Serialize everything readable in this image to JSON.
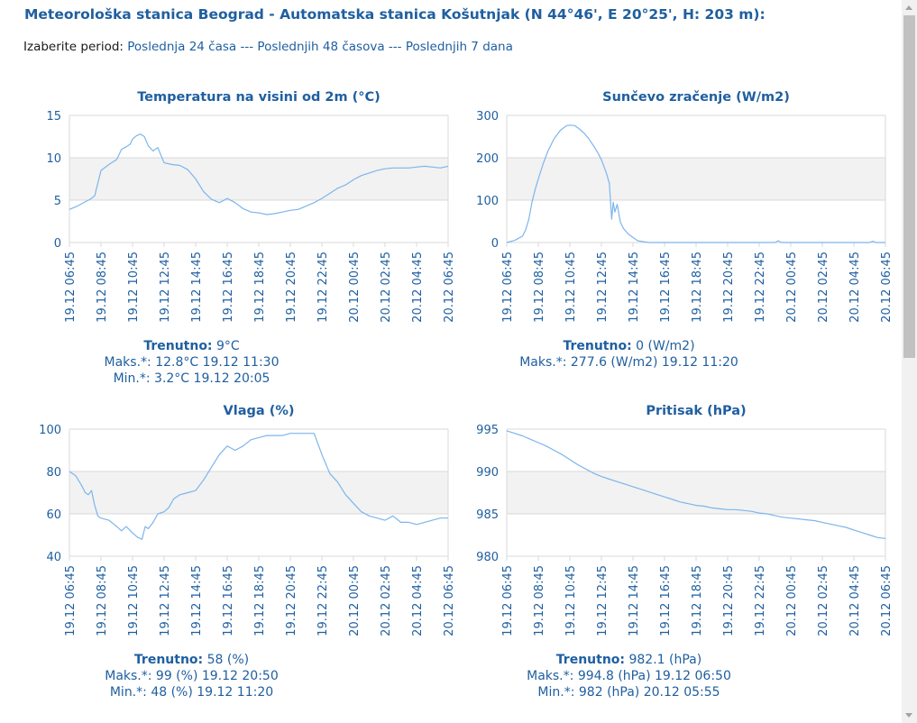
{
  "header": {
    "title": "Meteorološka stanica Beograd - Automatska stanica Košutnjak (N 44°46', E 20°25', H: 203 m):"
  },
  "period": {
    "label": "Izaberite period:",
    "options": [
      "Poslednja 24 časa",
      "Poslednjih 48 časova",
      "Poslednjih 7 dana"
    ],
    "separator": "---"
  },
  "colors": {
    "accent": "#1f5fa0",
    "line": "#7cb5ec",
    "band": "#f2f2f2",
    "grid": "#d8d8d8"
  },
  "chart_data": [
    {
      "type": "line",
      "title": "Temperatura na visini od 2m (°C)",
      "ylim": [
        0,
        15
      ],
      "yticks": [
        0,
        5,
        10,
        15
      ],
      "band": [
        5,
        10
      ],
      "x_labels": [
        "19.12 06:45",
        "19.12 08:45",
        "19.12 10:45",
        "19.12 12:45",
        "19.12 14:45",
        "19.12 16:45",
        "19.12 18:45",
        "19.12 20:45",
        "19.12 22:45",
        "20.12 00:45",
        "20.12 02:45",
        "20.12 04:45",
        "20.12 06:45"
      ],
      "x": [
        0,
        0.5,
        1,
        1.3,
        1.6,
        2,
        2.5,
        3,
        3.3,
        3.6,
        3.85,
        4,
        4.25,
        4.5,
        4.75,
        5,
        5.3,
        5.6,
        6,
        6.5,
        7,
        7.5,
        8,
        8.5,
        9,
        9.5,
        10,
        10.5,
        11,
        11.5,
        12,
        12.5,
        13,
        13.5,
        14,
        14.5,
        15,
        15.5,
        16,
        16.5,
        17,
        17.5,
        18,
        18.5,
        19,
        19.5,
        20,
        20.5,
        21,
        21.5,
        22,
        22.5,
        23,
        23.5,
        24
      ],
      "y": [
        3.9,
        4.3,
        4.8,
        5.1,
        5.5,
        8.5,
        9.2,
        9.8,
        11.0,
        11.3,
        11.6,
        12.2,
        12.6,
        12.8,
        12.5,
        11.4,
        10.8,
        11.2,
        9.4,
        9.2,
        9.1,
        8.6,
        7.5,
        6.0,
        5.1,
        4.7,
        5.2,
        4.7,
        4.0,
        3.6,
        3.5,
        3.3,
        3.4,
        3.6,
        3.8,
        3.9,
        4.3,
        4.7,
        5.2,
        5.8,
        6.4,
        6.8,
        7.4,
        7.9,
        8.2,
        8.5,
        8.7,
        8.8,
        8.8,
        8.8,
        8.9,
        9.0,
        8.9,
        8.8,
        9.0
      ],
      "stats": {
        "current_label": "Trenutno:",
        "current_value": "9°C",
        "max_label": "Maks.*:",
        "max_value": "12.8°C 19.12 11:30",
        "min_label": "Min.*:",
        "min_value": "3.2°C 19.12 20:05"
      }
    },
    {
      "type": "line",
      "title": "Sunčevo zračenje (W/m2)",
      "ylim": [
        0,
        300
      ],
      "yticks": [
        0,
        100,
        200,
        300
      ],
      "band": [
        100,
        200
      ],
      "x_labels": [
        "19.12 06:45",
        "19.12 08:45",
        "19.12 10:45",
        "19.12 12:45",
        "19.12 14:45",
        "19.12 16:45",
        "19.12 18:45",
        "19.12 20:45",
        "19.12 22:45",
        "20.12 00:45",
        "20.12 02:45",
        "20.12 04:45",
        "20.12 06:45"
      ],
      "x": [
        0,
        0.5,
        1,
        1.2,
        1.4,
        1.6,
        1.8,
        2,
        2.3,
        2.6,
        3,
        3.4,
        3.8,
        4,
        4.3,
        4.6,
        4.9,
        5.2,
        5.5,
        5.8,
        6,
        6.3,
        6.5,
        6.65,
        6.75,
        6.85,
        7,
        7.2,
        7.4,
        7.7,
        8,
        8.3,
        9,
        10,
        15,
        17,
        17.2,
        17.4,
        18,
        23,
        23.2,
        23.4,
        24
      ],
      "y": [
        0,
        5,
        15,
        30,
        55,
        95,
        125,
        150,
        185,
        215,
        245,
        265,
        276,
        277,
        276,
        268,
        258,
        245,
        228,
        210,
        195,
        165,
        140,
        55,
        95,
        72,
        90,
        48,
        33,
        20,
        12,
        4,
        0,
        0,
        0,
        0,
        4,
        0,
        0,
        0,
        3,
        0,
        0
      ],
      "stats": {
        "current_label": "Trenutno:",
        "current_value": "0 (W/m2)",
        "max_label": "Maks.*:",
        "max_value": "277.6 (W/m2) 19.12 11:20"
      }
    },
    {
      "type": "line",
      "title": "Vlaga (%)",
      "ylim": [
        40,
        100
      ],
      "yticks": [
        40,
        60,
        80,
        100
      ],
      "band": [
        60,
        80
      ],
      "x_labels": [
        "19.12 06:45",
        "19.12 08:45",
        "19.12 10:45",
        "19.12 12:45",
        "19.12 14:45",
        "19.12 16:45",
        "19.12 18:45",
        "19.12 20:45",
        "19.12 22:45",
        "20.12 00:45",
        "20.12 02:45",
        "20.12 04:45",
        "20.12 06:45"
      ],
      "x": [
        0,
        0.4,
        0.8,
        1,
        1.2,
        1.4,
        1.6,
        1.8,
        2,
        2.5,
        3,
        3.3,
        3.6,
        4,
        4.3,
        4.6,
        4.8,
        5,
        5.3,
        5.6,
        6,
        6.3,
        6.6,
        7,
        7.5,
        8,
        8.5,
        9,
        9.5,
        10,
        10.5,
        11,
        11.5,
        12,
        12.5,
        13,
        13.5,
        14,
        14.5,
        15,
        15.5,
        16,
        16.5,
        17,
        17.5,
        18,
        18.5,
        19,
        19.5,
        20,
        20.5,
        21,
        21.5,
        22,
        22.5,
        23,
        23.5,
        24
      ],
      "y": [
        80,
        78,
        73,
        70,
        69,
        71,
        64,
        59,
        58,
        57,
        54,
        52,
        54,
        51,
        49,
        48,
        54,
        53,
        56,
        60,
        61,
        63,
        67,
        69,
        70,
        71,
        76,
        82,
        88,
        92,
        90,
        92,
        95,
        96,
        97,
        97,
        97,
        98,
        98,
        98,
        98,
        88,
        79,
        75,
        69,
        65,
        61,
        59,
        58,
        57,
        59,
        56,
        56,
        55,
        56,
        57,
        58,
        58
      ],
      "stats": {
        "current_label": "Trenutno:",
        "current_value": "58 (%)",
        "max_label": "Maks.*:",
        "max_value": "99 (%) 19.12 20:50",
        "min_label": "Min.*:",
        "min_value": "48 (%) 19.12 11:20"
      }
    },
    {
      "type": "line",
      "title": "Pritisak (hPa)",
      "ylim": [
        980,
        995
      ],
      "yticks": [
        980,
        985,
        990,
        995
      ],
      "band": [
        985,
        990
      ],
      "x_labels": [
        "19.12 06:45",
        "19.12 08:45",
        "19.12 10:45",
        "19.12 12:45",
        "19.12 14:45",
        "19.12 16:45",
        "19.12 18:45",
        "19.12 20:45",
        "19.12 22:45",
        "20.12 00:45",
        "20.12 02:45",
        "20.12 04:45",
        "20.12 06:45"
      ],
      "x": [
        0,
        0.5,
        1,
        1.5,
        2,
        2.5,
        3,
        3.5,
        4,
        4.5,
        5,
        5.5,
        6,
        6.5,
        7,
        7.5,
        8,
        8.5,
        9,
        9.5,
        10,
        10.5,
        11,
        11.5,
        12,
        12.5,
        13,
        13.5,
        14,
        14.5,
        15,
        15.5,
        16,
        16.5,
        17,
        17.5,
        18,
        18.5,
        19,
        19.5,
        20,
        20.5,
        21,
        21.5,
        22,
        22.5,
        23,
        23.5,
        24
      ],
      "y": [
        994.8,
        994.5,
        994.2,
        993.8,
        993.4,
        993.0,
        992.5,
        992.0,
        991.4,
        990.8,
        990.3,
        989.8,
        989.4,
        989.1,
        988.8,
        988.5,
        988.2,
        987.9,
        987.6,
        987.3,
        987.0,
        986.7,
        986.4,
        986.2,
        986.0,
        985.9,
        985.7,
        985.6,
        985.5,
        985.5,
        985.4,
        985.3,
        985.1,
        985.0,
        984.8,
        984.6,
        984.5,
        984.4,
        984.3,
        984.2,
        984.0,
        983.8,
        983.6,
        983.4,
        983.1,
        982.8,
        982.5,
        982.2,
        982.1
      ],
      "stats": {
        "current_label": "Trenutno:",
        "current_value": "982.1 (hPa)",
        "max_label": "Maks.*:",
        "max_value": "994.8 (hPa) 19.12 06:50",
        "min_label": "Min.*:",
        "min_value": "982 (hPa) 20.12 05:55"
      }
    }
  ]
}
